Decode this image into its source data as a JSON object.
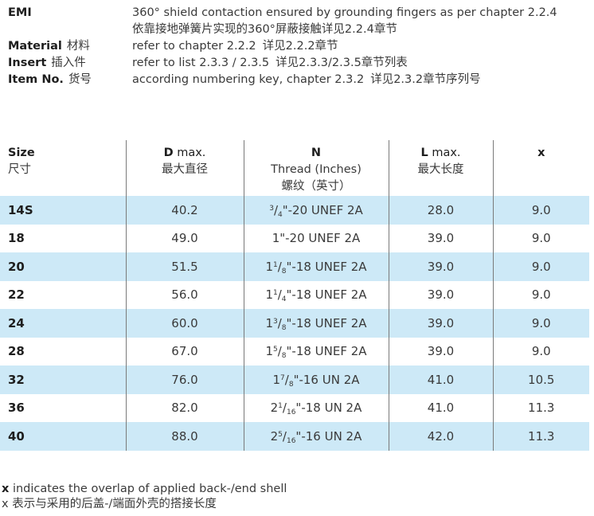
{
  "specs": [
    {
      "label_en": "EMI",
      "label_zh": "",
      "value_lines": [
        {
          "en": "360° shield contaction ensured by grounding fingers as per chapter 2.2.4",
          "zh": ""
        },
        {
          "en": "依靠接地弹簧片实现的360°屏蔽接触详见2.2.4章节",
          "zh": ""
        }
      ]
    },
    {
      "label_en": "Material",
      "label_zh": "材料",
      "value_lines": [
        {
          "en": "refer to chapter 2.2.2",
          "zh": "详见2.2.2章节"
        }
      ]
    },
    {
      "label_en": "Insert",
      "label_zh": "插入件",
      "value_lines": [
        {
          "en": "refer to list 2.3.3 / 2.3.5",
          "zh": "详见2.3.3/2.3.5章节列表"
        }
      ]
    },
    {
      "label_en": "Item No.",
      "label_zh": "货号",
      "value_lines": [
        {
          "en": "according numbering key, chapter 2.3.2",
          "zh": "详见2.3.2章节序列号"
        }
      ]
    }
  ],
  "table": {
    "headers": {
      "size": {
        "en": "Size",
        "zh": "尺寸"
      },
      "d": {
        "en_bold": "D",
        "en_rest": " max.",
        "zh": "最大直径"
      },
      "n": {
        "en_bold": "N",
        "en_line2": "Thread (Inches)",
        "zh": "螺纹（英寸）"
      },
      "l": {
        "en_bold": "L",
        "en_rest": " max.",
        "zh": "最大长度"
      },
      "x": {
        "en_bold": "x"
      }
    },
    "rows": [
      {
        "size": "14S",
        "d": "40.2",
        "thread": {
          "whole": "",
          "num": "3",
          "den": "4",
          "rest": "\"-20 UNEF 2A"
        },
        "l": "28.0",
        "x": "9.0"
      },
      {
        "size": "18",
        "d": "49.0",
        "thread": {
          "whole": "1",
          "num": "",
          "den": "",
          "rest": "\"-20 UNEF 2A"
        },
        "l": "39.0",
        "x": "9.0"
      },
      {
        "size": "20",
        "d": "51.5",
        "thread": {
          "whole": "1",
          "num": "1",
          "den": "8",
          "rest": "\"-18 UNEF 2A"
        },
        "l": "39.0",
        "x": "9.0"
      },
      {
        "size": "22",
        "d": "56.0",
        "thread": {
          "whole": "1",
          "num": "1",
          "den": "4",
          "rest": "\"-18 UNEF 2A"
        },
        "l": "39.0",
        "x": "9.0"
      },
      {
        "size": "24",
        "d": "60.0",
        "thread": {
          "whole": "1",
          "num": "3",
          "den": "8",
          "rest": "\"-18 UNEF 2A"
        },
        "l": "39.0",
        "x": "9.0"
      },
      {
        "size": "28",
        "d": "67.0",
        "thread": {
          "whole": "1",
          "num": "5",
          "den": "8",
          "rest": "\"-18 UNEF 2A"
        },
        "l": "39.0",
        "x": "9.0"
      },
      {
        "size": "32",
        "d": "76.0",
        "thread": {
          "whole": "1",
          "num": "7",
          "den": "8",
          "rest": "\"-16 UN 2A"
        },
        "l": "41.0",
        "x": "10.5"
      },
      {
        "size": "36",
        "d": "82.0",
        "thread": {
          "whole": "2",
          "num": "1",
          "den": "16",
          "rest": "\"-18 UN 2A"
        },
        "l": "41.0",
        "x": "11.3"
      },
      {
        "size": "40",
        "d": "88.0",
        "thread": {
          "whole": "2",
          "num": "5",
          "den": "16",
          "rest": "\"-16 UN 2A"
        },
        "l": "42.0",
        "x": "11.3"
      }
    ],
    "shade_color": "#cde9f7"
  },
  "footnote": {
    "en_key": "x",
    "en_text": " indicates the overlap of applied back-/end shell",
    "zh_key": "x",
    "zh_text": " 表示与采用的后盖-/端面外壳的搭接长度"
  }
}
